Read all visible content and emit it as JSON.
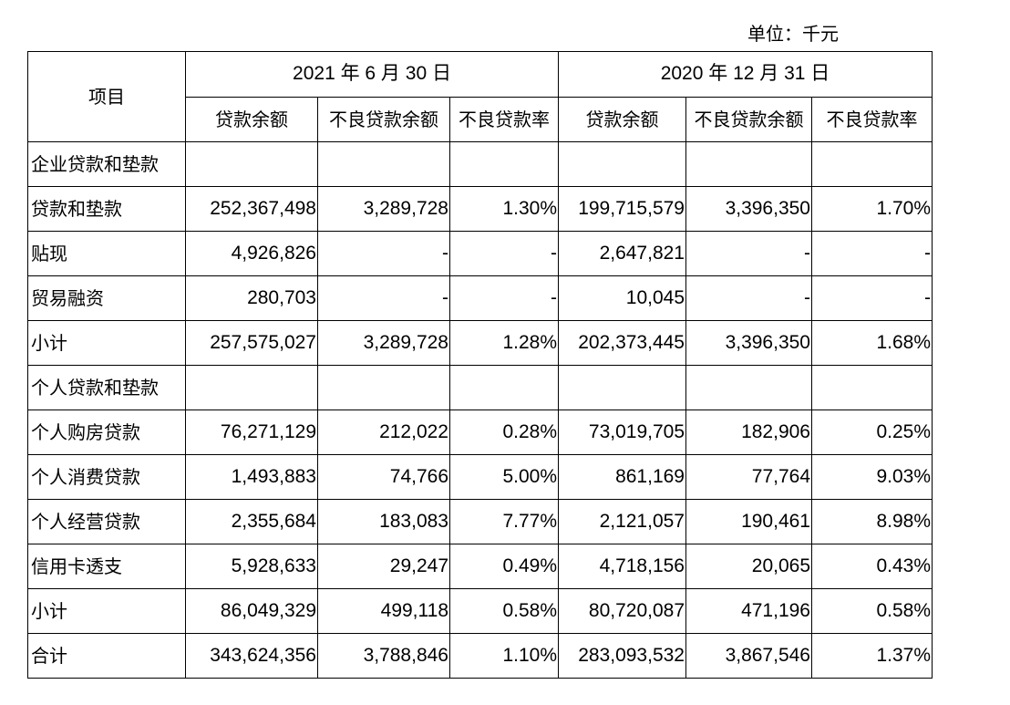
{
  "unit": "单位：千元",
  "header": {
    "item": "项目",
    "periods": [
      "2021 年 6 月 30 日",
      "2020 年 12 月 31 日"
    ],
    "cols": [
      "贷款余额",
      "不良贷款余额",
      "不良贷款率",
      "贷款余额",
      "不良贷款余额",
      "不良贷款率"
    ]
  },
  "rows": [
    {
      "label": "企业贷款和垫款",
      "cells": [
        "",
        "",
        "",
        "",
        "",
        ""
      ]
    },
    {
      "label": "贷款和垫款",
      "cells": [
        "252,367,498",
        "3,289,728",
        "1.30%",
        "199,715,579",
        "3,396,350",
        "1.70%"
      ]
    },
    {
      "label": "贴现",
      "cells": [
        "4,926,826",
        "-",
        "-",
        "2,647,821",
        "-",
        "-"
      ]
    },
    {
      "label": "贸易融资",
      "cells": [
        "280,703",
        "-",
        "-",
        "10,045",
        "-",
        "-"
      ]
    },
    {
      "label": "小计",
      "cells": [
        "257,575,027",
        "3,289,728",
        "1.28%",
        "202,373,445",
        "3,396,350",
        "1.68%"
      ]
    },
    {
      "label": "个人贷款和垫款",
      "cells": [
        "",
        "",
        "",
        "",
        "",
        ""
      ]
    },
    {
      "label": "个人购房贷款",
      "cells": [
        "76,271,129",
        "212,022",
        "0.28%",
        "73,019,705",
        "182,906",
        "0.25%"
      ]
    },
    {
      "label": "个人消费贷款",
      "cells": [
        "1,493,883",
        "74,766",
        "5.00%",
        "861,169",
        "77,764",
        "9.03%"
      ]
    },
    {
      "label": "个人经营贷款",
      "cells": [
        "2,355,684",
        "183,083",
        "7.77%",
        "2,121,057",
        "190,461",
        "8.98%"
      ]
    },
    {
      "label": "信用卡透支",
      "cells": [
        "5,928,633",
        "29,247",
        "0.49%",
        "4,718,156",
        "20,065",
        "0.43%"
      ]
    },
    {
      "label": "小计",
      "cells": [
        "86,049,329",
        "499,118",
        "0.58%",
        "80,720,087",
        "471,196",
        "0.58%"
      ]
    },
    {
      "label": "合计",
      "cells": [
        "343,624,356",
        "3,788,846",
        "1.10%",
        "283,093,532",
        "3,867,546",
        "1.37%"
      ]
    }
  ]
}
